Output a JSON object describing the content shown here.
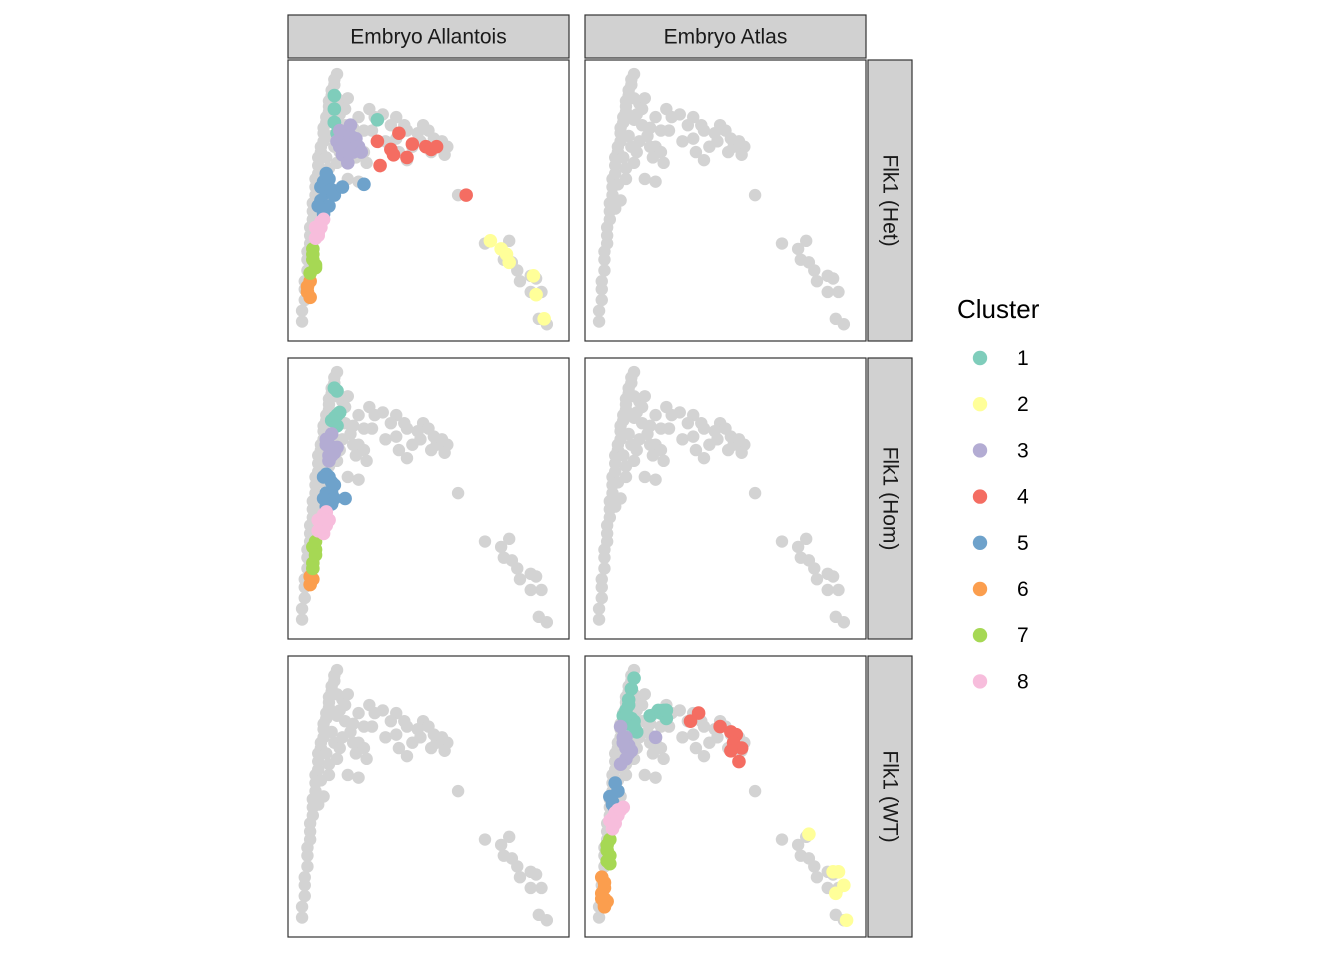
{
  "chart_data": {
    "type": "scatter",
    "facet_columns": [
      "Embryo Allantois",
      "Embryo Atlas"
    ],
    "facet_rows": [
      "Flk1 (Het)",
      "Flk1 (Hom)",
      "Flk1 (WT)"
    ],
    "axes": {
      "ticks": "none",
      "grid": false,
      "xlim": [
        0,
        100
      ],
      "ylim": [
        0,
        100
      ]
    },
    "background_color": "#d3d3d3",
    "legend": {
      "title": "Cluster",
      "position": "right",
      "entries": [
        {
          "label": "1",
          "color": "#7fcdbb"
        },
        {
          "label": "2",
          "color": "#ffff99"
        },
        {
          "label": "3",
          "color": "#b3acd3"
        },
        {
          "label": "4",
          "color": "#f46d62"
        },
        {
          "label": "5",
          "color": "#6ea2cb"
        },
        {
          "label": "6",
          "color": "#fb9e4e"
        },
        {
          "label": "7",
          "color": "#a6d854"
        },
        {
          "label": "8",
          "color": "#f7bddc"
        }
      ]
    },
    "background_points": [
      [
        3,
        5
      ],
      [
        3,
        9
      ],
      [
        4,
        13
      ],
      [
        4,
        17
      ],
      [
        4,
        20
      ],
      [
        5,
        24
      ],
      [
        5,
        28
      ],
      [
        5,
        31
      ],
      [
        6,
        34
      ],
      [
        6,
        37
      ],
      [
        6,
        40
      ],
      [
        7,
        43
      ],
      [
        7,
        46
      ],
      [
        7,
        49
      ],
      [
        8,
        52
      ],
      [
        8,
        55
      ],
      [
        8,
        58
      ],
      [
        9,
        60
      ],
      [
        9,
        63
      ],
      [
        9,
        66
      ],
      [
        10,
        68
      ],
      [
        10,
        70
      ],
      [
        11,
        72
      ],
      [
        11,
        75
      ],
      [
        11,
        77
      ],
      [
        12,
        79
      ],
      [
        12,
        81
      ],
      [
        13,
        83
      ],
      [
        13,
        85
      ],
      [
        13,
        87
      ],
      [
        14,
        89
      ],
      [
        14,
        91
      ],
      [
        15,
        93
      ],
      [
        15,
        95
      ],
      [
        16,
        97
      ],
      [
        14,
        74
      ],
      [
        15,
        70
      ],
      [
        17,
        68
      ],
      [
        16,
        64
      ],
      [
        13,
        62
      ],
      [
        18,
        72
      ],
      [
        19,
        78
      ],
      [
        17,
        82
      ],
      [
        18,
        86
      ],
      [
        16,
        88
      ],
      [
        12,
        66
      ],
      [
        10,
        56
      ],
      [
        9,
        47
      ],
      [
        11,
        50
      ],
      [
        13,
        58
      ],
      [
        16,
        80
      ],
      [
        19,
        84
      ],
      [
        20,
        88
      ],
      [
        21,
        74
      ],
      [
        22,
        77
      ],
      [
        24,
        81
      ],
      [
        26,
        76
      ],
      [
        24,
        70
      ],
      [
        22,
        70
      ],
      [
        23,
        66
      ],
      [
        26,
        68
      ],
      [
        27,
        64
      ],
      [
        20,
        58
      ],
      [
        24,
        57
      ],
      [
        28,
        84
      ],
      [
        30,
        81
      ],
      [
        33,
        82
      ],
      [
        29,
        76
      ],
      [
        34,
        72
      ],
      [
        38,
        73
      ],
      [
        39,
        68
      ],
      [
        42,
        65
      ],
      [
        44,
        70
      ],
      [
        46,
        75
      ],
      [
        48,
        78
      ],
      [
        47,
        72
      ],
      [
        41,
        78
      ],
      [
        38,
        81
      ],
      [
        36,
        78
      ],
      [
        42,
        76
      ],
      [
        50,
        76
      ],
      [
        52,
        73
      ],
      [
        53,
        70
      ],
      [
        51,
        68
      ],
      [
        55,
        72
      ],
      [
        57,
        70
      ],
      [
        56,
        67
      ],
      [
        61,
        52
      ],
      [
        71,
        34
      ],
      [
        77,
        32
      ],
      [
        80,
        35
      ],
      [
        78,
        28
      ],
      [
        81,
        27
      ],
      [
        83,
        24
      ],
      [
        84,
        20
      ],
      [
        88,
        22
      ],
      [
        90,
        21
      ],
      [
        88,
        16
      ],
      [
        92,
        16
      ],
      [
        91,
        6
      ],
      [
        94,
        4
      ]
    ],
    "panels": [
      {
        "row": "Flk1 (Het)",
        "column": "Embryo Allantois",
        "points": [
          {
            "cluster": "1",
            "x": [
              15,
              15,
              15,
              16,
              15,
              31
            ],
            "y": [
              89,
              84,
              79,
              75,
              79,
              80
            ]
          },
          {
            "cluster": "2",
            "x": [
              73,
              77,
              79,
              80,
              89,
              90,
              93
            ],
            "y": [
              35,
              32,
              30,
              27,
              22,
              15,
              6
            ]
          },
          {
            "cluster": "3",
            "x": [
              16,
              17,
              18,
              19,
              20,
              21,
              23,
              24,
              18,
              20,
              22,
              17,
              21,
              25
            ],
            "y": [
              72,
              70,
              73,
              68,
              71,
              74,
              73,
              70,
              67,
              64,
              68,
              76,
              78,
              68
            ]
          },
          {
            "cluster": "4",
            "x": [
              31,
              36,
              39,
              37,
              44,
              42,
              49,
              51,
              53,
              32,
              64
            ],
            "y": [
              72,
              69,
              75,
              67,
              71,
              66,
              70,
              69,
              70,
              63,
              52
            ]
          },
          {
            "cluster": "5",
            "x": [
              10,
              11,
              12,
              13,
              14,
              12,
              10,
              13,
              15,
              11,
              9,
              18,
              26
            ],
            "y": [
              55,
              57,
              53,
              58,
              54,
              60,
              50,
              48,
              52,
              45,
              48,
              55,
              56
            ]
          },
          {
            "cluster": "6",
            "x": [
              5,
              6,
              5,
              6
            ],
            "y": [
              16,
              20,
              18,
              14
            ]
          },
          {
            "cluster": "7",
            "x": [
              7,
              7,
              8,
              6,
              7,
              8
            ],
            "y": [
              32,
              28,
              25,
              23,
              30,
              26
            ]
          },
          {
            "cluster": "8",
            "x": [
              8,
              9,
              10,
              8,
              9,
              11,
              10
            ],
            "y": [
              40,
              38,
              42,
              36,
              37,
              43,
              40
            ]
          }
        ]
      },
      {
        "row": "Flk1 (Het)",
        "column": "Embryo Atlas",
        "points": []
      },
      {
        "row": "Flk1 (Hom)",
        "column": "Embryo Allantois",
        "points": [
          {
            "cluster": "1",
            "x": [
              15,
              16,
              17,
              15,
              16,
              14,
              16
            ],
            "y": [
              91,
              90,
              82,
              80,
              81,
              79,
              77
            ]
          },
          {
            "cluster": "3",
            "x": [
              12,
              13,
              14,
              15,
              16,
              13,
              14,
              15,
              13,
              12
            ],
            "y": [
              72,
              70,
              74,
              68,
              69,
              64,
              66,
              67,
              66,
              70
            ]
          },
          {
            "cluster": "5",
            "x": [
              11,
              12,
              13,
              14,
              15,
              12,
              13,
              14,
              11,
              15,
              19,
              14,
              12
            ],
            "y": [
              58,
              59,
              58,
              56,
              55,
              52,
              50,
              52,
              50,
              50,
              50,
              48,
              47
            ]
          },
          {
            "cluster": "6",
            "x": [
              6,
              7,
              6
            ],
            "y": [
              21,
              20,
              18
            ]
          },
          {
            "cluster": "7",
            "x": [
              7,
              8,
              8,
              7,
              8,
              7
            ],
            "y": [
              32,
              31,
              34,
              26,
              29,
              24
            ]
          },
          {
            "cluster": "8",
            "x": [
              9,
              10,
              11,
              12,
              13,
              10,
              11,
              12,
              9,
              11,
              13,
              12
            ],
            "y": [
              42,
              41,
              44,
              45,
              42,
              38,
              37,
              40,
              38,
              43,
              42,
              42
            ]
          }
        ]
      },
      {
        "row": "Flk1 (Hom)",
        "column": "Embryo Atlas",
        "points": []
      },
      {
        "row": "Flk1 (WT)",
        "column": "Embryo Allantois",
        "points": []
      },
      {
        "row": "Flk1 (WT)",
        "column": "Embryo Atlas",
        "points": [
          {
            "cluster": "1",
            "x": [
              16,
              15,
              14,
              13,
              14,
              12,
              14,
              15,
              16,
              17,
              22,
              25,
              26,
              28,
              28,
              16,
              13,
              27,
              28
            ],
            "y": [
              94,
              90,
              86,
              82,
              84,
              80,
              77,
              79,
              78,
              74,
              80,
              82,
              81,
              82,
              79,
              76,
              80,
              82,
              82
            ]
          },
          {
            "cluster": "2",
            "x": [
              81,
              90,
              92,
              94,
              91,
              95
            ],
            "y": [
              36,
              22,
              22,
              17,
              14,
              4
            ]
          },
          {
            "cluster": "3",
            "x": [
              11,
              12,
              13,
              14,
              15,
              12,
              13,
              14,
              13,
              11,
              24
            ],
            "y": [
              76,
              72,
              72,
              69,
              67,
              70,
              68,
              66,
              64,
              62,
              72
            ]
          },
          {
            "cluster": "4",
            "x": [
              37,
              40,
              48,
              52,
              54,
              53,
              56,
              52,
              55
            ],
            "y": [
              78,
              81,
              76,
              74,
              73,
              70,
              68,
              67,
              63
            ]
          },
          {
            "cluster": "5",
            "x": [
              7,
              8,
              9,
              10,
              8,
              9
            ],
            "y": [
              50,
              47,
              45,
              52,
              48,
              55
            ]
          },
          {
            "cluster": "6",
            "x": [
              4,
              5,
              5,
              4,
              5,
              6,
              5,
              5,
              4
            ],
            "y": [
              20,
              18,
              16,
              14,
              12,
              11,
              10,
              9,
              12
            ]
          },
          {
            "cluster": "7",
            "x": [
              6,
              7,
              6,
              7,
              6,
              7
            ],
            "y": [
              30,
              28,
              26,
              34,
              32,
              25
            ]
          },
          {
            "cluster": "8",
            "x": [
              7,
              8,
              9,
              10,
              8,
              9,
              10,
              11,
              12
            ],
            "y": [
              41,
              42,
              44,
              45,
              38,
              40,
              43,
              45,
              46
            ]
          }
        ]
      }
    ]
  }
}
